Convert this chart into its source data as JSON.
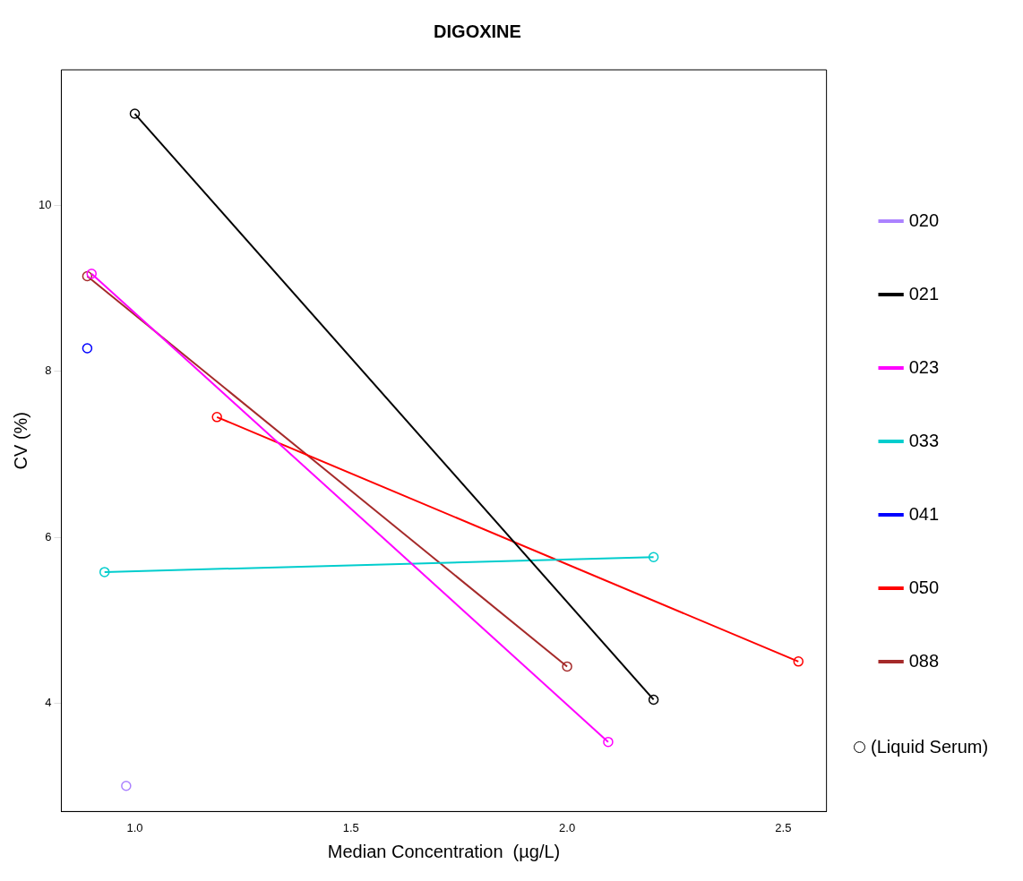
{
  "chart_data": {
    "type": "line",
    "title": "DIGOXINE",
    "xlabel": "Median Concentration  (µg/L)",
    "ylabel": "CV (%)",
    "xlim": [
      0.83,
      2.6
    ],
    "ylim": [
      2.69,
      11.64
    ],
    "xticks": [
      {
        "value": 1,
        "label": "1.0"
      },
      {
        "value": 1.5,
        "label": "1.5"
      },
      {
        "value": 2,
        "label": "2.0"
      },
      {
        "value": 2.5,
        "label": "2.5"
      }
    ],
    "yticks": [
      4,
      6,
      8,
      10
    ],
    "grid": false,
    "legend": "right",
    "marker": "circle",
    "line_style": "solid",
    "annotations": [
      "(Liquid Serum)"
    ],
    "series": [
      {
        "name": "020",
        "color": "#ab82ff",
        "x": [
          0.98
        ],
        "values": [
          3.0
        ]
      },
      {
        "name": "021",
        "color": "#000000",
        "x": [
          1.0,
          2.2
        ],
        "values": [
          11.11,
          4.04
        ]
      },
      {
        "name": "023",
        "color": "#ff00ff",
        "x": [
          0.9,
          2.095
        ],
        "values": [
          9.18,
          3.53
        ]
      },
      {
        "name": "033",
        "color": "#00cdcd",
        "x": [
          0.93,
          2.2
        ],
        "values": [
          5.58,
          5.76
        ]
      },
      {
        "name": "041",
        "color": "#0000ff",
        "x": [
          0.89
        ],
        "values": [
          8.28
        ]
      },
      {
        "name": "050",
        "color": "#ff0000",
        "x": [
          1.19,
          2.535
        ],
        "values": [
          7.45,
          4.5
        ]
      },
      {
        "name": "088",
        "color": "#a52a2a",
        "x": [
          0.89,
          2.0
        ],
        "values": [
          9.15,
          4.44
        ]
      }
    ]
  }
}
